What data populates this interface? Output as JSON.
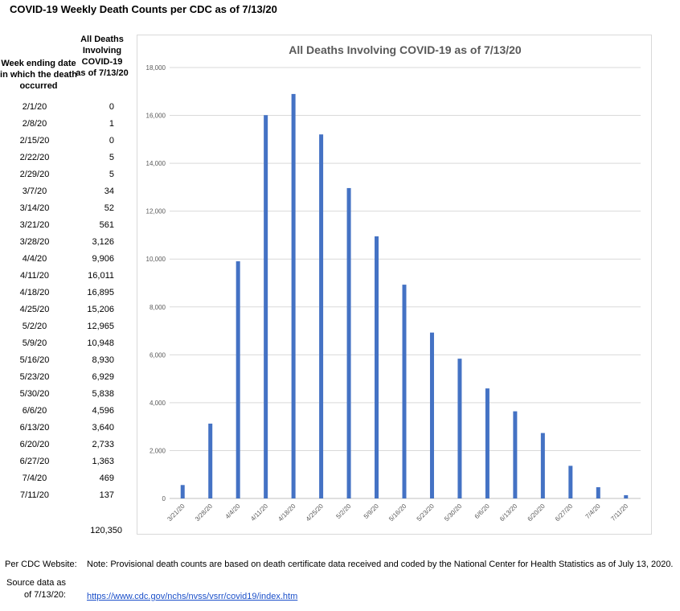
{
  "title": "COVID-19 Weekly Death Counts per CDC as of 7/13/20",
  "table": {
    "header_week": "Week ending date in which the death occurred",
    "header_deaths": "All Deaths Involving COVID-19 as of 7/13/20",
    "rows": [
      {
        "date": "2/1/20",
        "value": "0"
      },
      {
        "date": "2/8/20",
        "value": "1"
      },
      {
        "date": "2/15/20",
        "value": "0"
      },
      {
        "date": "2/22/20",
        "value": "5"
      },
      {
        "date": "2/29/20",
        "value": "5"
      },
      {
        "date": "3/7/20",
        "value": "34"
      },
      {
        "date": "3/14/20",
        "value": "52"
      },
      {
        "date": "3/21/20",
        "value": "561"
      },
      {
        "date": "3/28/20",
        "value": "3,126"
      },
      {
        "date": "4/4/20",
        "value": "9,906"
      },
      {
        "date": "4/11/20",
        "value": "16,011"
      },
      {
        "date": "4/18/20",
        "value": "16,895"
      },
      {
        "date": "4/25/20",
        "value": "15,206"
      },
      {
        "date": "5/2/20",
        "value": "12,965"
      },
      {
        "date": "5/9/20",
        "value": "10,948"
      },
      {
        "date": "5/16/20",
        "value": "8,930"
      },
      {
        "date": "5/23/20",
        "value": "6,929"
      },
      {
        "date": "5/30/20",
        "value": "5,838"
      },
      {
        "date": "6/6/20",
        "value": "4,596"
      },
      {
        "date": "6/13/20",
        "value": "3,640"
      },
      {
        "date": "6/20/20",
        "value": "2,733"
      },
      {
        "date": "6/27/20",
        "value": "1,363"
      },
      {
        "date": "7/4/20",
        "value": "469"
      },
      {
        "date": "7/11/20",
        "value": "137"
      }
    ],
    "total": "120,350"
  },
  "chart_data": {
    "type": "bar",
    "title": "All Deaths Involving COVID-19 as of 7/13/20",
    "categories": [
      "3/21/20",
      "3/28/20",
      "4/4/20",
      "4/11/20",
      "4/18/20",
      "4/25/20",
      "5/2/20",
      "5/9/20",
      "5/16/20",
      "5/23/20",
      "5/30/20",
      "6/6/20",
      "6/13/20",
      "6/20/20",
      "6/27/20",
      "7/4/20",
      "7/11/20"
    ],
    "values": [
      561,
      3126,
      9906,
      16011,
      16895,
      15206,
      12965,
      10948,
      8930,
      6929,
      5838,
      4596,
      3640,
      2733,
      1363,
      469,
      137
    ],
    "y_ticks": [
      "0",
      "2,000",
      "4,000",
      "6,000",
      "8,000",
      "10,000",
      "12,000",
      "14,000",
      "16,000",
      "18,000"
    ],
    "ylim": [
      0,
      18000
    ],
    "bar_color": "#4472c4",
    "grid": true
  },
  "footer": {
    "label_website": "Per CDC Website:",
    "note": "Note: Provisional death counts are based on death certificate data received and coded by the National Center for Health Statistics as of July 13, 2020.",
    "label_source": "Source data as of 7/13/20:",
    "link": "https://www.cdc.gov/nchs/nvss/vsrr/covid19/index.htm"
  }
}
